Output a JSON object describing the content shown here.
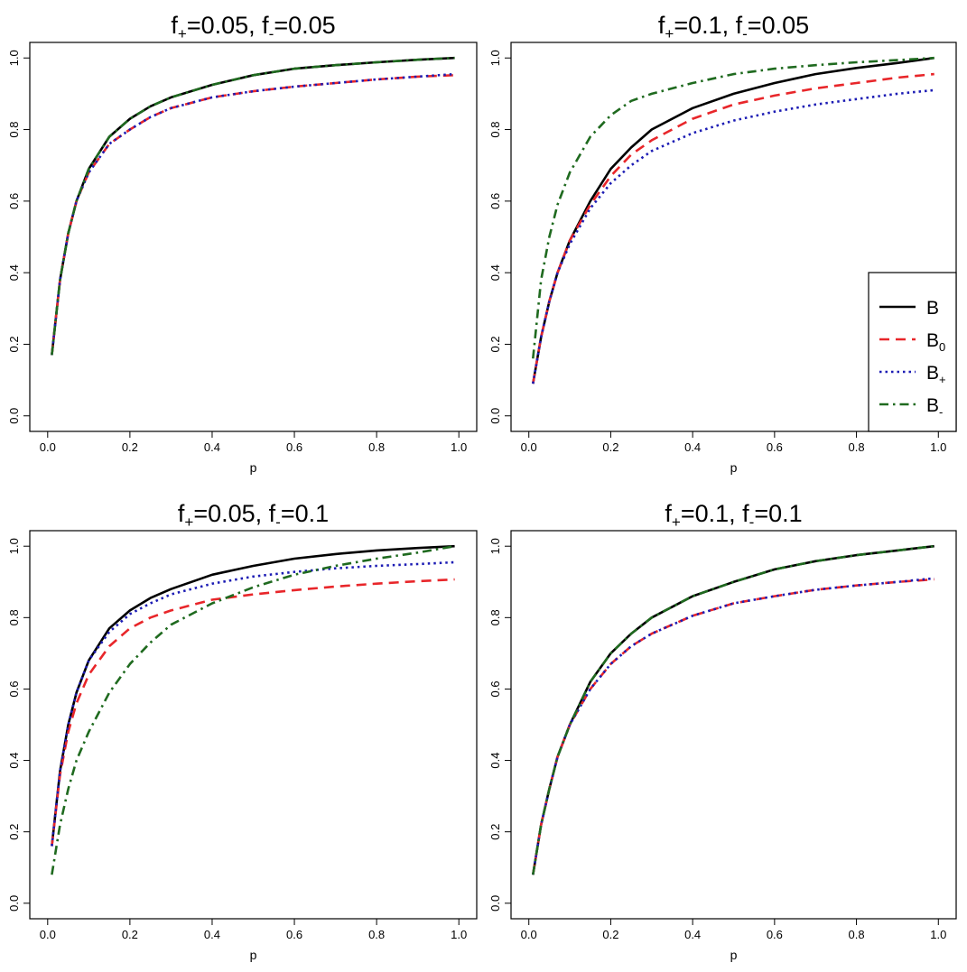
{
  "legend": {
    "entries": [
      {
        "series": "B",
        "base": "B",
        "sub": ""
      },
      {
        "series": "B0",
        "base": "B",
        "sub": "0"
      },
      {
        "series": "B+",
        "base": "B",
        "sub": "+"
      },
      {
        "series": "B-",
        "base": "B",
        "sub": "-"
      }
    ],
    "panel": 1,
    "placement": "bottom-right"
  },
  "styles": {
    "B": {
      "color": "#000000",
      "dash": "",
      "width": 2.6
    },
    "B0": {
      "color": "#e8262a",
      "dash": "11 7",
      "width": 2.6
    },
    "B+": {
      "color": "#1c1cb4",
      "dash": "2.5 4",
      "width": 2.6
    },
    "B-": {
      "color": "#1f6a1f",
      "dash": "10 5 2.5 5",
      "width": 2.6
    }
  },
  "chart_data": [
    {
      "type": "line",
      "title": {
        "f_plus": "0.05",
        "f_minus": "0.05",
        "sep": ", "
      },
      "xlabel": "p",
      "ylabel": "",
      "xlim": [
        0,
        1
      ],
      "ylim": [
        0,
        1
      ],
      "xticks": [
        "0.0",
        "0.2",
        "0.4",
        "0.6",
        "0.8",
        "1.0"
      ],
      "yticks": [
        "0.0",
        "0.2",
        "0.4",
        "0.6",
        "0.8",
        "1.0"
      ],
      "x": [
        0.01,
        0.03,
        0.05,
        0.07,
        0.1,
        0.15,
        0.2,
        0.25,
        0.3,
        0.4,
        0.5,
        0.6,
        0.7,
        0.8,
        0.9,
        0.99
      ],
      "series": [
        {
          "name": "B",
          "values": [
            0.17,
            0.38,
            0.51,
            0.6,
            0.69,
            0.78,
            0.83,
            0.865,
            0.89,
            0.925,
            0.952,
            0.97,
            0.98,
            0.988,
            0.995,
            1.0
          ]
        },
        {
          "name": "B0",
          "values": [
            0.17,
            0.38,
            0.51,
            0.6,
            0.68,
            0.76,
            0.8,
            0.835,
            0.86,
            0.89,
            0.907,
            0.92,
            0.93,
            0.94,
            0.948,
            0.952
          ]
        },
        {
          "name": "B+",
          "values": [
            0.17,
            0.38,
            0.51,
            0.6,
            0.68,
            0.76,
            0.8,
            0.835,
            0.86,
            0.89,
            0.907,
            0.92,
            0.93,
            0.94,
            0.948,
            0.955
          ]
        },
        {
          "name": "B-",
          "values": [
            0.17,
            0.38,
            0.51,
            0.6,
            0.69,
            0.78,
            0.83,
            0.865,
            0.89,
            0.925,
            0.952,
            0.97,
            0.98,
            0.988,
            0.995,
            1.0
          ]
        }
      ]
    },
    {
      "type": "line",
      "title": {
        "f_plus": "0.1",
        "f_minus": "0.05",
        "sep": ", "
      },
      "xlabel": "p",
      "ylabel": "",
      "xlim": [
        0,
        1
      ],
      "ylim": [
        0,
        1
      ],
      "xticks": [
        "0.0",
        "0.2",
        "0.4",
        "0.6",
        "0.8",
        "1.0"
      ],
      "yticks": [
        "0.0",
        "0.2",
        "0.4",
        "0.6",
        "0.8",
        "1.0"
      ],
      "x": [
        0.01,
        0.03,
        0.05,
        0.07,
        0.1,
        0.15,
        0.2,
        0.25,
        0.3,
        0.4,
        0.5,
        0.6,
        0.7,
        0.8,
        0.9,
        0.99
      ],
      "series": [
        {
          "name": "B",
          "values": [
            0.09,
            0.22,
            0.32,
            0.4,
            0.49,
            0.6,
            0.69,
            0.75,
            0.8,
            0.86,
            0.9,
            0.93,
            0.955,
            0.972,
            0.986,
            1.0
          ]
        },
        {
          "name": "B0",
          "values": [
            0.09,
            0.22,
            0.32,
            0.4,
            0.49,
            0.59,
            0.67,
            0.73,
            0.77,
            0.83,
            0.87,
            0.895,
            0.915,
            0.93,
            0.945,
            0.955
          ]
        },
        {
          "name": "B+",
          "values": [
            0.09,
            0.22,
            0.32,
            0.4,
            0.48,
            0.58,
            0.65,
            0.7,
            0.74,
            0.79,
            0.825,
            0.85,
            0.87,
            0.885,
            0.9,
            0.91
          ]
        },
        {
          "name": "B-",
          "values": [
            0.16,
            0.38,
            0.5,
            0.59,
            0.68,
            0.78,
            0.84,
            0.88,
            0.9,
            0.93,
            0.955,
            0.97,
            0.98,
            0.988,
            0.994,
            1.0
          ]
        }
      ]
    },
    {
      "type": "line",
      "title": {
        "f_plus": "0.05",
        "f_minus": "0.1",
        "sep": ", "
      },
      "xlabel": "p",
      "ylabel": "",
      "xlim": [
        0,
        1
      ],
      "ylim": [
        0,
        1
      ],
      "xticks": [
        "0.0",
        "0.2",
        "0.4",
        "0.6",
        "0.8",
        "1.0"
      ],
      "yticks": [
        "0.0",
        "0.2",
        "0.4",
        "0.6",
        "0.8",
        "1.0"
      ],
      "x": [
        0.01,
        0.03,
        0.05,
        0.07,
        0.1,
        0.15,
        0.2,
        0.25,
        0.3,
        0.4,
        0.5,
        0.6,
        0.7,
        0.8,
        0.9,
        0.99
      ],
      "series": [
        {
          "name": "B",
          "values": [
            0.16,
            0.37,
            0.5,
            0.59,
            0.68,
            0.77,
            0.82,
            0.855,
            0.88,
            0.92,
            0.945,
            0.965,
            0.978,
            0.988,
            0.995,
            1.0
          ]
        },
        {
          "name": "B0",
          "values": [
            0.16,
            0.36,
            0.48,
            0.56,
            0.64,
            0.72,
            0.77,
            0.8,
            0.82,
            0.85,
            0.865,
            0.877,
            0.887,
            0.895,
            0.902,
            0.907
          ]
        },
        {
          "name": "B+",
          "values": [
            0.16,
            0.37,
            0.5,
            0.59,
            0.68,
            0.76,
            0.81,
            0.84,
            0.865,
            0.895,
            0.915,
            0.928,
            0.938,
            0.945,
            0.95,
            0.955
          ]
        },
        {
          "name": "B-",
          "values": [
            0.08,
            0.22,
            0.32,
            0.4,
            0.48,
            0.59,
            0.67,
            0.73,
            0.78,
            0.84,
            0.885,
            0.92,
            0.945,
            0.965,
            0.982,
            1.0
          ]
        }
      ]
    },
    {
      "type": "line",
      "title": {
        "f_plus": "0.1",
        "f_minus": "0.1",
        "sep": ", "
      },
      "xlabel": "p",
      "ylabel": "",
      "xlim": [
        0,
        1
      ],
      "ylim": [
        0,
        1
      ],
      "xticks": [
        "0.0",
        "0.2",
        "0.4",
        "0.6",
        "0.8",
        "1.0"
      ],
      "yticks": [
        "0.0",
        "0.2",
        "0.4",
        "0.6",
        "0.8",
        "1.0"
      ],
      "x": [
        0.01,
        0.03,
        0.05,
        0.07,
        0.1,
        0.15,
        0.2,
        0.25,
        0.3,
        0.4,
        0.5,
        0.6,
        0.7,
        0.8,
        0.9,
        0.99
      ],
      "series": [
        {
          "name": "B",
          "values": [
            0.08,
            0.22,
            0.32,
            0.41,
            0.5,
            0.62,
            0.7,
            0.755,
            0.8,
            0.86,
            0.9,
            0.935,
            0.958,
            0.975,
            0.988,
            1.0
          ]
        },
        {
          "name": "B0",
          "values": [
            0.08,
            0.22,
            0.32,
            0.41,
            0.5,
            0.6,
            0.67,
            0.72,
            0.755,
            0.805,
            0.84,
            0.86,
            0.878,
            0.89,
            0.9,
            0.907
          ]
        },
        {
          "name": "B+",
          "values": [
            0.08,
            0.22,
            0.32,
            0.41,
            0.5,
            0.6,
            0.67,
            0.72,
            0.755,
            0.805,
            0.84,
            0.86,
            0.878,
            0.89,
            0.9,
            0.91
          ]
        },
        {
          "name": "B-",
          "values": [
            0.08,
            0.22,
            0.32,
            0.41,
            0.5,
            0.62,
            0.7,
            0.755,
            0.8,
            0.86,
            0.9,
            0.935,
            0.958,
            0.975,
            0.988,
            1.0
          ]
        }
      ]
    }
  ]
}
